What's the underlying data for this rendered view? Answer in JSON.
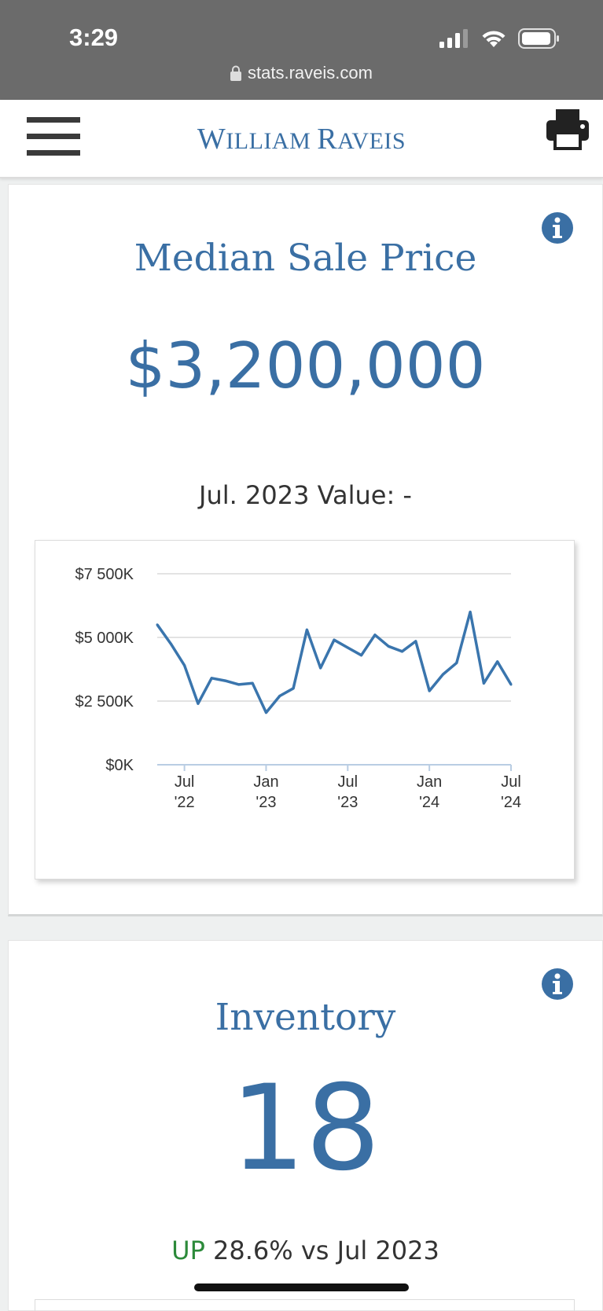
{
  "status_bar": {
    "time": "3:29",
    "url": "stats.raveis.com"
  },
  "header": {
    "logo_first": "W",
    "logo_rest1": "ILLIAM ",
    "logo_second": "R",
    "logo_rest2": "AVEIS"
  },
  "median_card": {
    "title": "Median Sale Price",
    "value": "$3,200,000",
    "compare_text": "Jul. 2023 Value: -"
  },
  "inventory_card": {
    "title": "Inventory",
    "value": "18",
    "trend_direction": "UP",
    "trend_text": "28.6% vs Jul 2023"
  },
  "colors": {
    "accent": "#3a6fa4",
    "up": "#2c8a3a",
    "status_bar": "#6b6b6b"
  },
  "chart_data": {
    "type": "line",
    "x": [
      "2022-05",
      "2022-06",
      "2022-07",
      "2022-08",
      "2022-09",
      "2022-10",
      "2022-11",
      "2022-12",
      "2023-01",
      "2023-02",
      "2023-03",
      "2023-04",
      "2023-05",
      "2023-06",
      "2023-07",
      "2023-08",
      "2023-09",
      "2023-10",
      "2023-11",
      "2023-12",
      "2024-01",
      "2024-02",
      "2024-03",
      "2024-04",
      "2024-05",
      "2024-06",
      "2024-07"
    ],
    "series": [
      {
        "values": [
          5500,
          4750,
          3900,
          2400,
          3400,
          3300,
          3150,
          3200,
          2050,
          2700,
          3000,
          5300,
          3800,
          4900,
          4600,
          4300,
          5100,
          4650,
          4450,
          4850,
          2900,
          3550,
          4000,
          6000,
          3200,
          4050,
          3150
        ]
      }
    ],
    "x_tick_labels": [
      [
        "Jul",
        "'22"
      ],
      [
        "Jan",
        "'23"
      ],
      [
        "Jul",
        "'23"
      ],
      [
        "Jan",
        "'24"
      ],
      [
        "Jul",
        "'24"
      ]
    ],
    "x_tick_positions": [
      "2022-07",
      "2023-01",
      "2023-07",
      "2024-01",
      "2024-07"
    ],
    "y_tick_labels": [
      "$0K",
      "$2 500K",
      "$5 000K",
      "$7 500K"
    ],
    "y_tick_values": [
      0,
      2500,
      5000,
      7500
    ],
    "ylim": [
      0,
      7500
    ],
    "grid": true,
    "line_color": "#3a75ad"
  }
}
